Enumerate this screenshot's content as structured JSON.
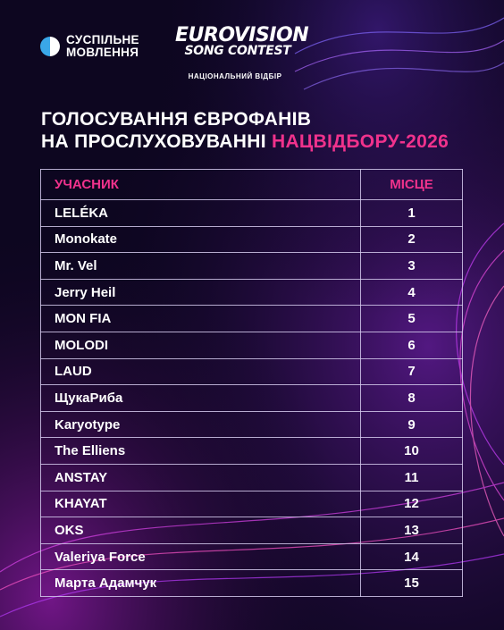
{
  "header": {
    "broadcaster_line1": "СУСПІЛЬНЕ",
    "broadcaster_line2": "МОВЛЕННЯ",
    "esc_line1": "EUROVISION",
    "esc_line2": "SONG CONTEST",
    "esc_subtitle": "НАЦІОНАЛЬНИЙ ВІДБІР"
  },
  "title": {
    "line1": "ГОЛОСУВАННЯ ЄВРОФАНІВ",
    "line2_prefix": "НА ПРОСЛУХОВУВАННІ ",
    "line2_highlight": "НАЦВІДБОРУ-2026"
  },
  "table": {
    "headers": {
      "participant": "УЧАСНИК",
      "place": "МІСЦЕ"
    },
    "rows": [
      {
        "name": "LELÉKA",
        "place": "1"
      },
      {
        "name": "Monokate",
        "place": "2"
      },
      {
        "name": "Mr. Vel",
        "place": "3"
      },
      {
        "name": "Jerry Heil",
        "place": "4"
      },
      {
        "name": "MON FIA",
        "place": "5"
      },
      {
        "name": "MOLODI",
        "place": "6"
      },
      {
        "name": "LAUD",
        "place": "7"
      },
      {
        "name": "ЩукаРиба",
        "place": "8"
      },
      {
        "name": "Karyotype",
        "place": "9"
      },
      {
        "name": "The Elliens",
        "place": "10"
      },
      {
        "name": "ANSTAY",
        "place": "11"
      },
      {
        "name": "KHAYAT",
        "place": "12"
      },
      {
        "name": "OKS",
        "place": "13"
      },
      {
        "name": "Valeriya Force",
        "place": "14"
      },
      {
        "name": "Марта Адамчук",
        "place": "15"
      }
    ]
  },
  "colors": {
    "accent": "#f0328c",
    "background": "#0d0620",
    "logo_blue": "#3aa7e8"
  }
}
